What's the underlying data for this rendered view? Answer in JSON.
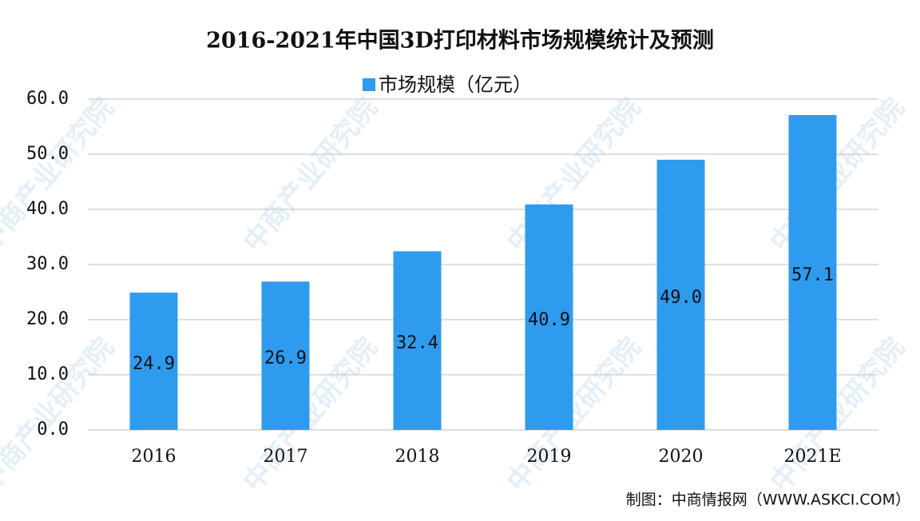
{
  "chart_data": {
    "type": "bar",
    "title": "2016-2021年中国3D打印材料市场规模统计及预测",
    "series_name": "市场规模（亿元）",
    "categories": [
      "2016",
      "2017",
      "2018",
      "2019",
      "2020",
      "2021E"
    ],
    "values": [
      24.9,
      26.9,
      32.4,
      40.9,
      49.0,
      57.1
    ],
    "value_labels": [
      "24.9",
      "26.9",
      "32.4",
      "40.9",
      "49.0",
      "57.1"
    ],
    "color": "#2f9bef",
    "ylim": [
      0,
      60
    ],
    "yticks": [
      {
        "value": 0,
        "label": "0.0"
      },
      {
        "value": 10,
        "label": "10.0"
      },
      {
        "value": 20,
        "label": "20.0"
      },
      {
        "value": 30,
        "label": "30.0"
      },
      {
        "value": 40,
        "label": "40.0"
      },
      {
        "value": 50,
        "label": "50.0"
      },
      {
        "value": 60,
        "label": "60.0"
      }
    ],
    "grid": true,
    "source": "制图：中商情报网（WWW.ASKCI.COM）",
    "watermark": "中商产业研究院"
  }
}
